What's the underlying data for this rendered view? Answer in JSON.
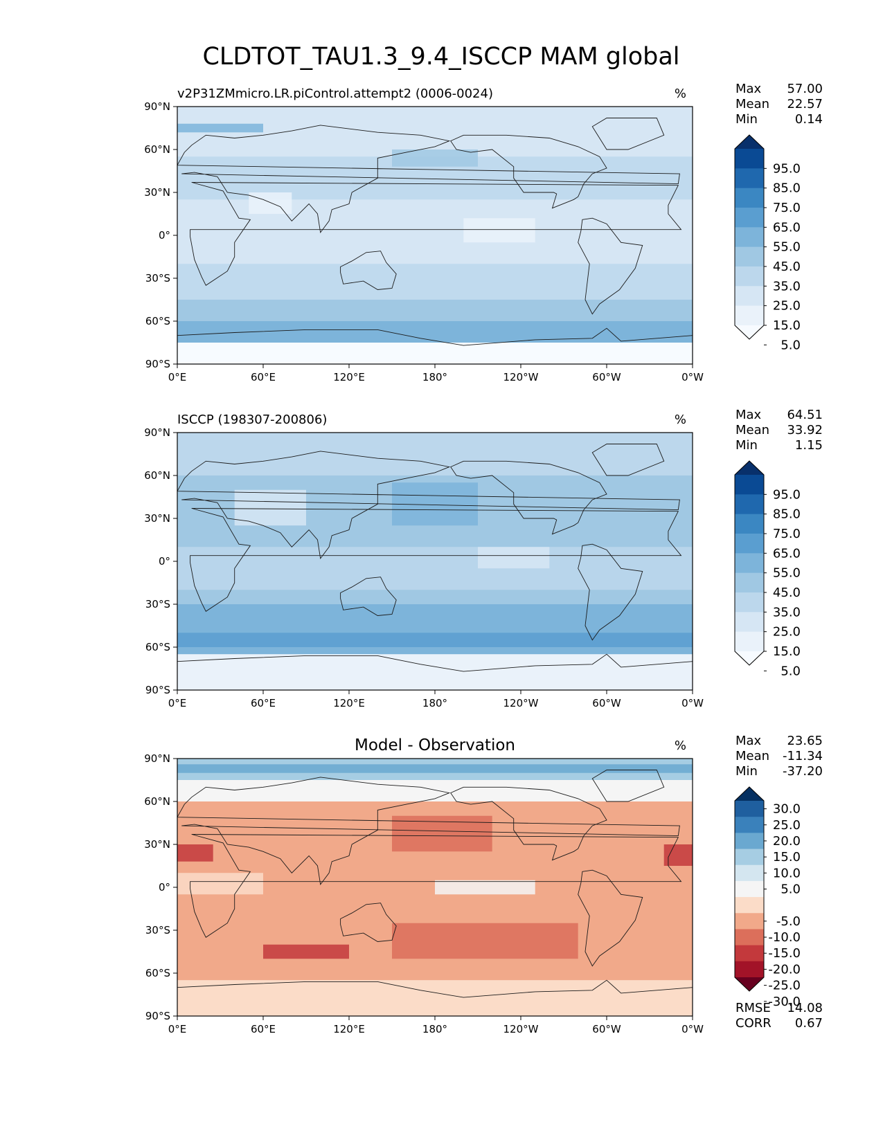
{
  "title": "CLDTOT_TAU1.3_9.4_ISCCP MAM global",
  "x_ticks": [
    "0°E",
    "60°E",
    "120°E",
    "180°",
    "120°W",
    "60°W",
    "0°W"
  ],
  "y_ticks": [
    "90°N",
    "60°N",
    "30°N",
    "0°",
    "30°S",
    "60°S",
    "90°S"
  ],
  "panels": [
    {
      "id": "model",
      "left_title": "v2P31ZMmicro.LR.piControl.attempt2 (0006-0024)",
      "center_title": "",
      "units": "%",
      "stats": [
        {
          "label": "Max",
          "value": "57.00"
        },
        {
          "label": "Mean",
          "value": "22.57"
        },
        {
          "label": "Min",
          "value": "0.14"
        }
      ],
      "colorbar": {
        "type": "sequential",
        "labels": [
          "95.0",
          "85.0",
          "75.0",
          "65.0",
          "55.0",
          "45.0",
          "35.0",
          "25.0",
          "15.0",
          "5.0"
        ],
        "colors_top_to_bottom": [
          "#08306b",
          "#0a4a94",
          "#1f68ae",
          "#3b87c2",
          "#5a9ed0",
          "#7db4da",
          "#a0c8e3",
          "#bcd7ec",
          "#d6e6f4",
          "#eaf2fa",
          "#f7fbff"
        ]
      },
      "extra_stats": []
    },
    {
      "id": "obs",
      "left_title": "ISCCP (198307-200806)",
      "center_title": "",
      "units": "%",
      "stats": [
        {
          "label": "Max",
          "value": "64.51"
        },
        {
          "label": "Mean",
          "value": "33.92"
        },
        {
          "label": "Min",
          "value": "1.15"
        }
      ],
      "colorbar": {
        "type": "sequential",
        "labels": [
          "95.0",
          "85.0",
          "75.0",
          "65.0",
          "55.0",
          "45.0",
          "35.0",
          "25.0",
          "15.0",
          "5.0"
        ],
        "colors_top_to_bottom": [
          "#08306b",
          "#0a4a94",
          "#1f68ae",
          "#3b87c2",
          "#5a9ed0",
          "#7db4da",
          "#a0c8e3",
          "#bcd7ec",
          "#d6e6f4",
          "#eaf2fa",
          "#f7fbff"
        ]
      },
      "extra_stats": []
    },
    {
      "id": "diff",
      "left_title": "",
      "center_title": "Model - Observation",
      "units": "%",
      "stats": [
        {
          "label": "Max",
          "value": "23.65"
        },
        {
          "label": "Mean",
          "value": "-11.34"
        },
        {
          "label": "Min",
          "value": "-37.20"
        }
      ],
      "colorbar": {
        "type": "diverging",
        "labels": [
          "30.0",
          "25.0",
          "20.0",
          "15.0",
          "10.0",
          "5.0",
          "-5.0",
          "-10.0",
          "-15.0",
          "-20.0",
          "-25.0",
          "-30.0"
        ],
        "colors_top_to_bottom": [
          "#053061",
          "#1f5f9f",
          "#3a81bb",
          "#6aa8d0",
          "#a6cde3",
          "#d4e6f0",
          "#f5f5f5",
          "#fbdcc8",
          "#f1a98a",
          "#dc6f5b",
          "#c3393c",
          "#a21328",
          "#67001f"
        ]
      },
      "extra_stats": [
        {
          "label": "RMSE",
          "value": "14.08"
        },
        {
          "label": "CORR",
          "value": "0.67"
        }
      ]
    }
  ],
  "map_fields": {
    "model": [
      {
        "band": [
          60,
          90
        ],
        "color": "#d6e6f4"
      },
      {
        "band": [
          -60,
          -45
        ],
        "color": "#a0c8e3"
      },
      {
        "band": [
          -75,
          -60
        ],
        "color": "#7db4da"
      },
      {
        "band": [
          -90,
          -75
        ],
        "color": "#f7fbff"
      },
      {
        "band": [
          -45,
          60
        ],
        "color": "#d6e6f4"
      }
    ],
    "obs": [
      {
        "band": [
          60,
          90
        ],
        "color": "#bcd7ec"
      },
      {
        "band": [
          30,
          60
        ],
        "color": "#a0c8e3"
      },
      {
        "band": [
          -30,
          30
        ],
        "color": "#a0c8e3"
      },
      {
        "band": [
          -65,
          -30
        ],
        "color": "#7db4da"
      },
      {
        "band": [
          -90,
          -65
        ],
        "color": "#eaf2fa"
      }
    ],
    "diff": [
      {
        "band": [
          75,
          90
        ],
        "color": "#a6cde3"
      },
      {
        "band": [
          60,
          75
        ],
        "color": "#f5f5f5"
      },
      {
        "band": [
          -65,
          60
        ],
        "color": "#f1a98a"
      },
      {
        "band": [
          -90,
          -65
        ],
        "color": "#fbdcc8"
      }
    ]
  }
}
